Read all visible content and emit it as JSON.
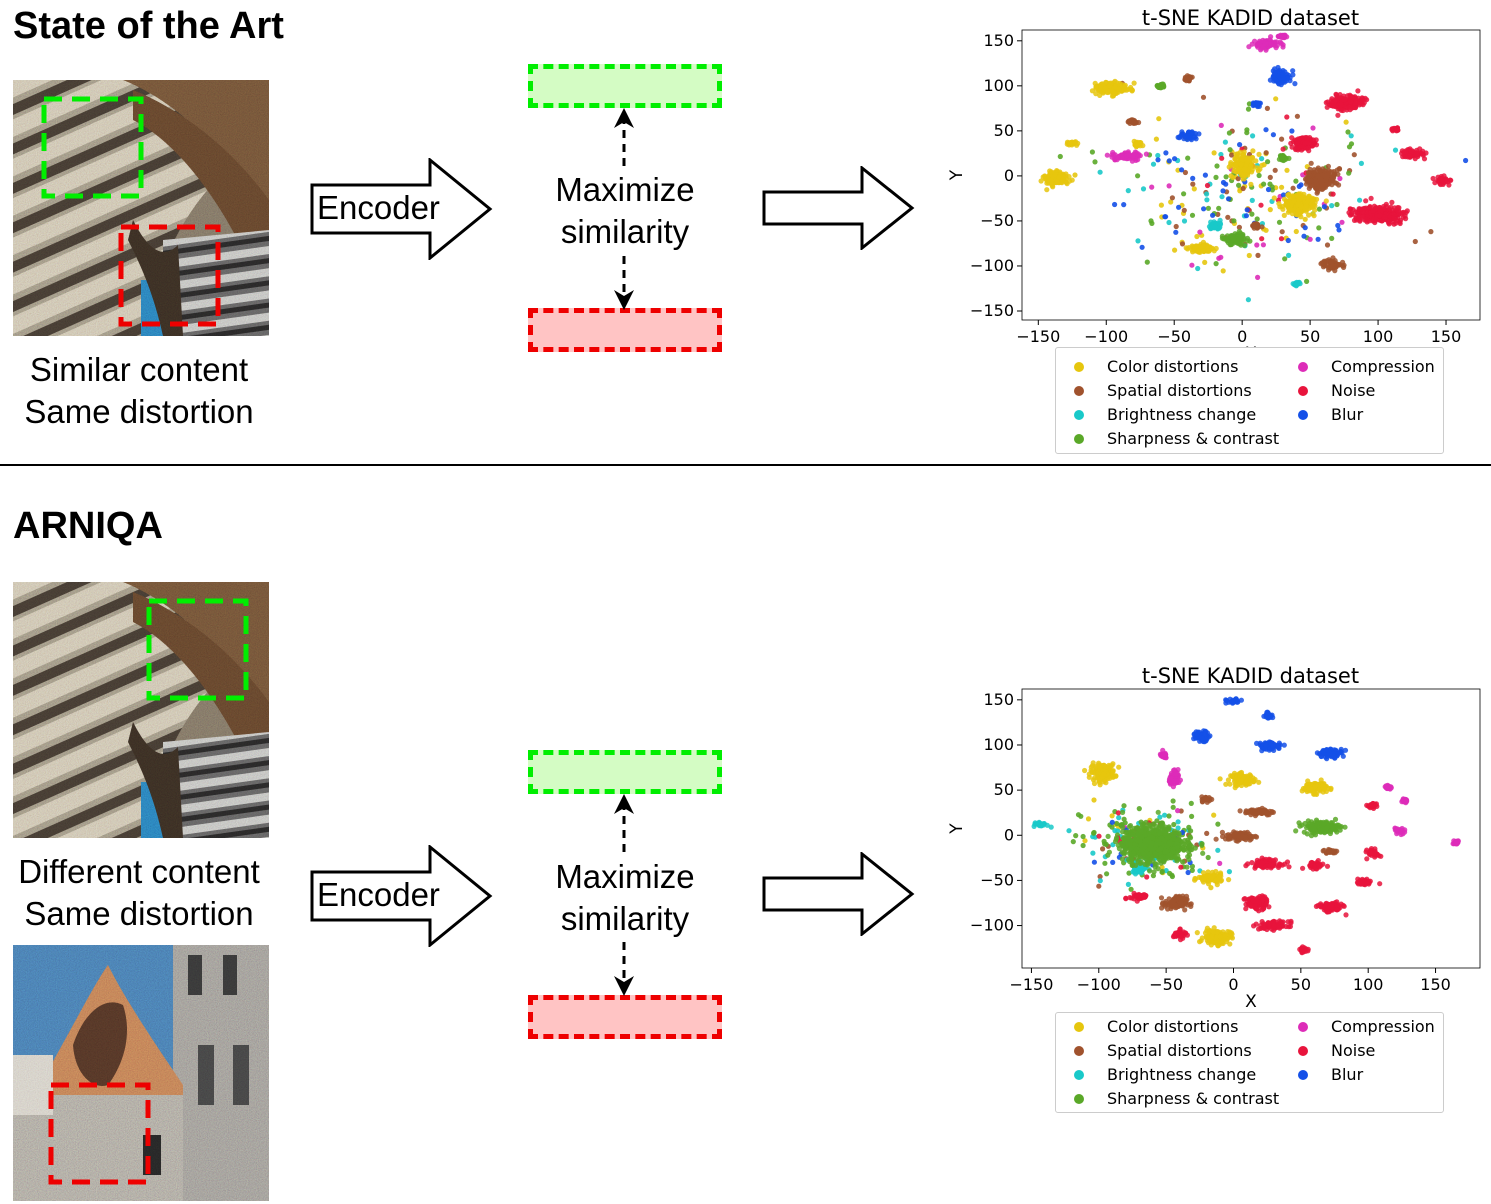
{
  "top": {
    "section_title": "State of the Art",
    "caption_line1": "Similar content",
    "caption_line2": "Same distortion",
    "encoder_label": "Encoder",
    "maximize_line1": "Maximize",
    "maximize_line2": "similarity"
  },
  "bottom": {
    "section_title": "ARNIQA",
    "caption_line1": "Different content",
    "caption_line2": "Same distortion",
    "encoder_label": "Encoder",
    "maximize_line1": "Maximize",
    "maximize_line2": "similarity"
  },
  "colors": {
    "Color distortions": "#e6c60e",
    "Spatial distortions": "#a0522d",
    "Brightness change": "#19c9c9",
    "Sharpness & contrast": "#5aa828",
    "Compression": "#dd2cb8",
    "Noise": "#e8143c",
    "Blur": "#1450e8",
    "crop_green": "#00ee00",
    "crop_red": "#ee0000"
  },
  "chart_data": [
    {
      "type": "scatter",
      "title": "t-SNE KADID dataset",
      "xlabel": "X",
      "ylabel": "Y",
      "xlim": [
        -162,
        175
      ],
      "ylim": [
        -160,
        162
      ],
      "xticks": [
        -150,
        -100,
        -50,
        0,
        50,
        100,
        150
      ],
      "yticks": [
        -150,
        -100,
        -50,
        0,
        50,
        100,
        150
      ],
      "xtick_labels": [
        "−150",
        "−100",
        "−50",
        "0",
        "50",
        "100",
        "150"
      ],
      "ytick_labels": [
        "−150",
        "−100",
        "−50",
        "0",
        "50",
        "100",
        "150"
      ],
      "grid": false,
      "legend_position": "below",
      "legend": [
        "Color distortions",
        "Spatial distortions",
        "Brightness change",
        "Sharpness & contrast",
        "Compression",
        "Noise",
        "Blur"
      ],
      "series": [
        {
          "name": "Color distortions",
          "clusters": [
            [
              -95,
              97,
              14,
              7
            ],
            [
              -137,
              -2,
              10,
              9
            ],
            [
              -30,
              -81,
              10,
              6
            ],
            [
              1,
              12,
              9,
              13
            ],
            [
              42,
              -31,
              13,
              12
            ],
            [
              -126,
              36,
              5,
              2
            ],
            [
              -78,
              35,
              4,
              3
            ]
          ]
        },
        {
          "name": "Spatial distortions",
          "clusters": [
            [
              58,
              -3,
              12,
              12
            ],
            [
              66,
              -98,
              7,
              6
            ],
            [
              -40,
              108,
              3,
              3
            ],
            [
              -80,
              60,
              4,
              3
            ],
            [
              10,
              -55,
              4,
              4
            ]
          ]
        },
        {
          "name": "Brightness change",
          "clusters": [
            [
              -20,
              -55,
              6,
              5
            ],
            [
              40,
              -120,
              4,
              3
            ]
          ]
        },
        {
          "name": "Sharpness & contrast",
          "clusters": [
            [
              -5,
              -70,
              8,
              8
            ],
            [
              -60,
              100,
              4,
              3
            ],
            [
              30,
              20,
              4,
              3
            ]
          ]
        },
        {
          "name": "Compression",
          "clusters": [
            [
              17,
              146,
              10,
              5
            ],
            [
              -84,
              22,
              12,
              5
            ],
            [
              30,
              155,
              4,
              2
            ]
          ]
        },
        {
          "name": "Noise",
          "clusters": [
            [
              77,
              81,
              13,
              9
            ],
            [
              44,
              36,
              10,
              8
            ],
            [
              100,
              -42,
              20,
              10
            ],
            [
              125,
              24,
              10,
              5
            ],
            [
              148,
              -5,
              6,
              5
            ],
            [
              113,
              52,
              3,
              2
            ]
          ]
        },
        {
          "name": "Blur",
          "clusters": [
            [
              29,
              110,
              8,
              8
            ],
            [
              -40,
              45,
              6,
              5
            ],
            [
              10,
              80,
              3,
              3
            ]
          ]
        }
      ],
      "scatter": [
        {
          "name": "Color distortions",
          "cx": 0,
          "cy": -20,
          "sx": 62,
          "sy": 50,
          "n": 45
        },
        {
          "name": "Spatial distortions",
          "cx": 0,
          "cy": -20,
          "sx": 62,
          "sy": 50,
          "n": 45
        },
        {
          "name": "Brightness change",
          "cx": 0,
          "cy": -20,
          "sx": 62,
          "sy": 50,
          "n": 35
        },
        {
          "name": "Sharpness & contrast",
          "cx": 0,
          "cy": -20,
          "sx": 62,
          "sy": 50,
          "n": 60
        },
        {
          "name": "Compression",
          "cx": 0,
          "cy": -20,
          "sx": 62,
          "sy": 50,
          "n": 20
        },
        {
          "name": "Noise",
          "cx": 0,
          "cy": -20,
          "sx": 62,
          "sy": 50,
          "n": 15
        },
        {
          "name": "Blur",
          "cx": 0,
          "cy": -20,
          "sx": 62,
          "sy": 50,
          "n": 45
        }
      ]
    },
    {
      "type": "scatter",
      "title": "t-SNE KADID dataset",
      "xlabel": "X",
      "ylabel": "Y",
      "xlim": [
        -157,
        183
      ],
      "ylim": [
        -147,
        162
      ],
      "xticks": [
        -150,
        -100,
        -50,
        0,
        50,
        100,
        150
      ],
      "yticks": [
        -100,
        -50,
        0,
        50,
        100,
        150
      ],
      "xtick_labels": [
        "−150",
        "−100",
        "−50",
        "0",
        "50",
        "100",
        "150"
      ],
      "ytick_labels": [
        "−100",
        "−50",
        "0",
        "50",
        "100",
        "150"
      ],
      "grid": false,
      "legend_position": "below",
      "legend": [
        "Color distortions",
        "Spatial distortions",
        "Brightness change",
        "Sharpness & contrast",
        "Compression",
        "Noise",
        "Blur"
      ],
      "series": [
        {
          "name": "Color distortions",
          "clusters": [
            [
              -97,
              70,
              10,
              10
            ],
            [
              7,
              62,
              10,
              7
            ],
            [
              60,
              53,
              10,
              7
            ],
            [
              -17,
              -48,
              10,
              6
            ],
            [
              -12,
              -113,
              11,
              9
            ]
          ]
        },
        {
          "name": "Spatial distortions",
          "clusters": [
            [
              -43,
              -75,
              9,
              8
            ],
            [
              5,
              -1,
              12,
              5
            ],
            [
              19,
              26,
              12,
              4
            ],
            [
              72,
              -18,
              6,
              3
            ],
            [
              -20,
              40,
              4,
              3
            ]
          ]
        },
        {
          "name": "Brightness change",
          "clusters": [
            [
              -143,
              12,
              6,
              3
            ],
            [
              -70,
              -35,
              6,
              8
            ]
          ]
        },
        {
          "name": "Sharpness & contrast",
          "clusters": [
            [
              65,
              9,
              15,
              7
            ],
            [
              -60,
              -10,
              25,
              22
            ]
          ]
        },
        {
          "name": "Compression",
          "clusters": [
            [
              -43,
              63,
              5,
              8
            ],
            [
              -52,
              88,
              3,
              4
            ],
            [
              115,
              53,
              3,
              2
            ],
            [
              127,
              38,
              3,
              3
            ],
            [
              123,
              5,
              4,
              5
            ],
            [
              165,
              -8,
              3,
              2
            ]
          ]
        },
        {
          "name": "Noise",
          "clusters": [
            [
              24,
              -31,
              12,
              5
            ],
            [
              30,
              -100,
              12,
              5
            ],
            [
              60,
              -33,
              8,
              4
            ],
            [
              72,
              -80,
              10,
              6
            ],
            [
              97,
              -52,
              6,
              4
            ],
            [
              104,
              -20,
              5,
              5
            ],
            [
              -70,
              -68,
              8,
              4
            ],
            [
              -40,
              -110,
              5,
              5
            ],
            [
              17,
              -75,
              9,
              8
            ],
            [
              103,
              33,
              4,
              3
            ],
            [
              52,
              -127,
              3,
              3
            ]
          ]
        },
        {
          "name": "Blur",
          "clusters": [
            [
              0,
              148,
              6,
              3
            ],
            [
              -24,
              110,
              7,
              6
            ],
            [
              26,
              133,
              3,
              4
            ],
            [
              27,
              99,
              10,
              5
            ],
            [
              72,
              91,
              10,
              5
            ]
          ]
        }
      ],
      "scatter": [
        {
          "name": "Color distortions",
          "cx": -65,
          "cy": -10,
          "sx": 30,
          "sy": 28,
          "n": 25
        },
        {
          "name": "Spatial distortions",
          "cx": -65,
          "cy": -10,
          "sx": 30,
          "sy": 28,
          "n": 30
        },
        {
          "name": "Brightness change",
          "cx": -65,
          "cy": -10,
          "sx": 30,
          "sy": 28,
          "n": 40
        },
        {
          "name": "Sharpness & contrast",
          "cx": -65,
          "cy": -10,
          "sx": 30,
          "sy": 28,
          "n": 90
        },
        {
          "name": "Compression",
          "cx": -65,
          "cy": -10,
          "sx": 30,
          "sy": 28,
          "n": 8
        },
        {
          "name": "Noise",
          "cx": -65,
          "cy": -10,
          "sx": 30,
          "sy": 28,
          "n": 10
        },
        {
          "name": "Blur",
          "cx": -65,
          "cy": -10,
          "sx": 30,
          "sy": 28,
          "n": 15
        }
      ]
    }
  ]
}
